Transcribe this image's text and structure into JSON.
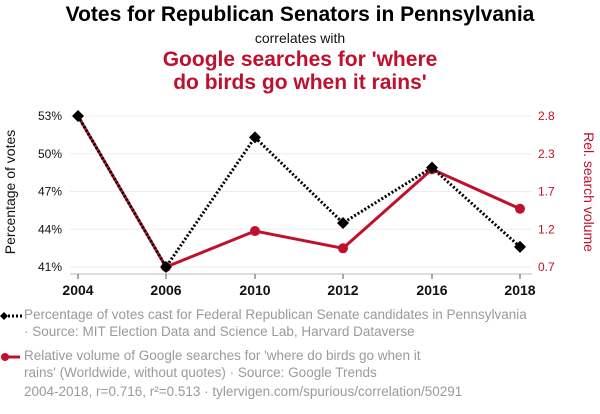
{
  "header": {
    "title": "Votes for Republican Senators in Pennsylvania",
    "subtitle": "correlates with",
    "title2_line1": "Google searches for 'where",
    "title2_line2": "do birds go when it rains'"
  },
  "colors": {
    "series1": "#000000",
    "series2": "#c0102c",
    "grid": "#eeeeee",
    "legend_text": "#9a9a9a"
  },
  "chart_data": {
    "type": "line",
    "x": [
      "2004",
      "2006",
      "2010",
      "2012",
      "2016",
      "2018"
    ],
    "series": [
      {
        "name": "Percentage of votes cast for Federal Republican Senate candidates in Pennsylvania",
        "axis": "left",
        "values": [
          53.0,
          41.0,
          51.3,
          44.5,
          48.9,
          42.6
        ],
        "style": "dotted",
        "marker": "diamond"
      },
      {
        "name": "Relative volume of Google searches for 'where do birds go when it rains' (Worldwide, without quotes)",
        "axis": "right",
        "values": [
          2.8,
          0.7,
          1.2,
          0.96,
          2.06,
          1.51
        ],
        "style": "solid",
        "marker": "circle"
      }
    ],
    "ylabel_left": "Percentage of votes",
    "ylabel_right": "Rel. search volume",
    "left_ticks": [
      "53%",
      "50%",
      "47%",
      "44%",
      "41%"
    ],
    "right_ticks": [
      "2.8",
      "2.3",
      "1.7",
      "1.2",
      "0.7"
    ],
    "ylim_left": [
      41,
      53
    ],
    "ylim_right": [
      0.7,
      2.8
    ],
    "grid": true
  },
  "legend": {
    "item1_line1": "Percentage of votes cast for Federal Republican Senate candidates in Pennsylvania",
    "item1_line2": "· Source: MIT Election Data and Science Lab, Harvard Dataverse",
    "item2_line1": "Relative volume of Google searches for 'where do birds go when it",
    "item2_line2": "rains' (Worldwide, without quotes) · Source: Google Trends"
  },
  "footer": "2004-2018, r=0.716, r²=0.513 · tylervigen.com/spurious/correlation/50291"
}
